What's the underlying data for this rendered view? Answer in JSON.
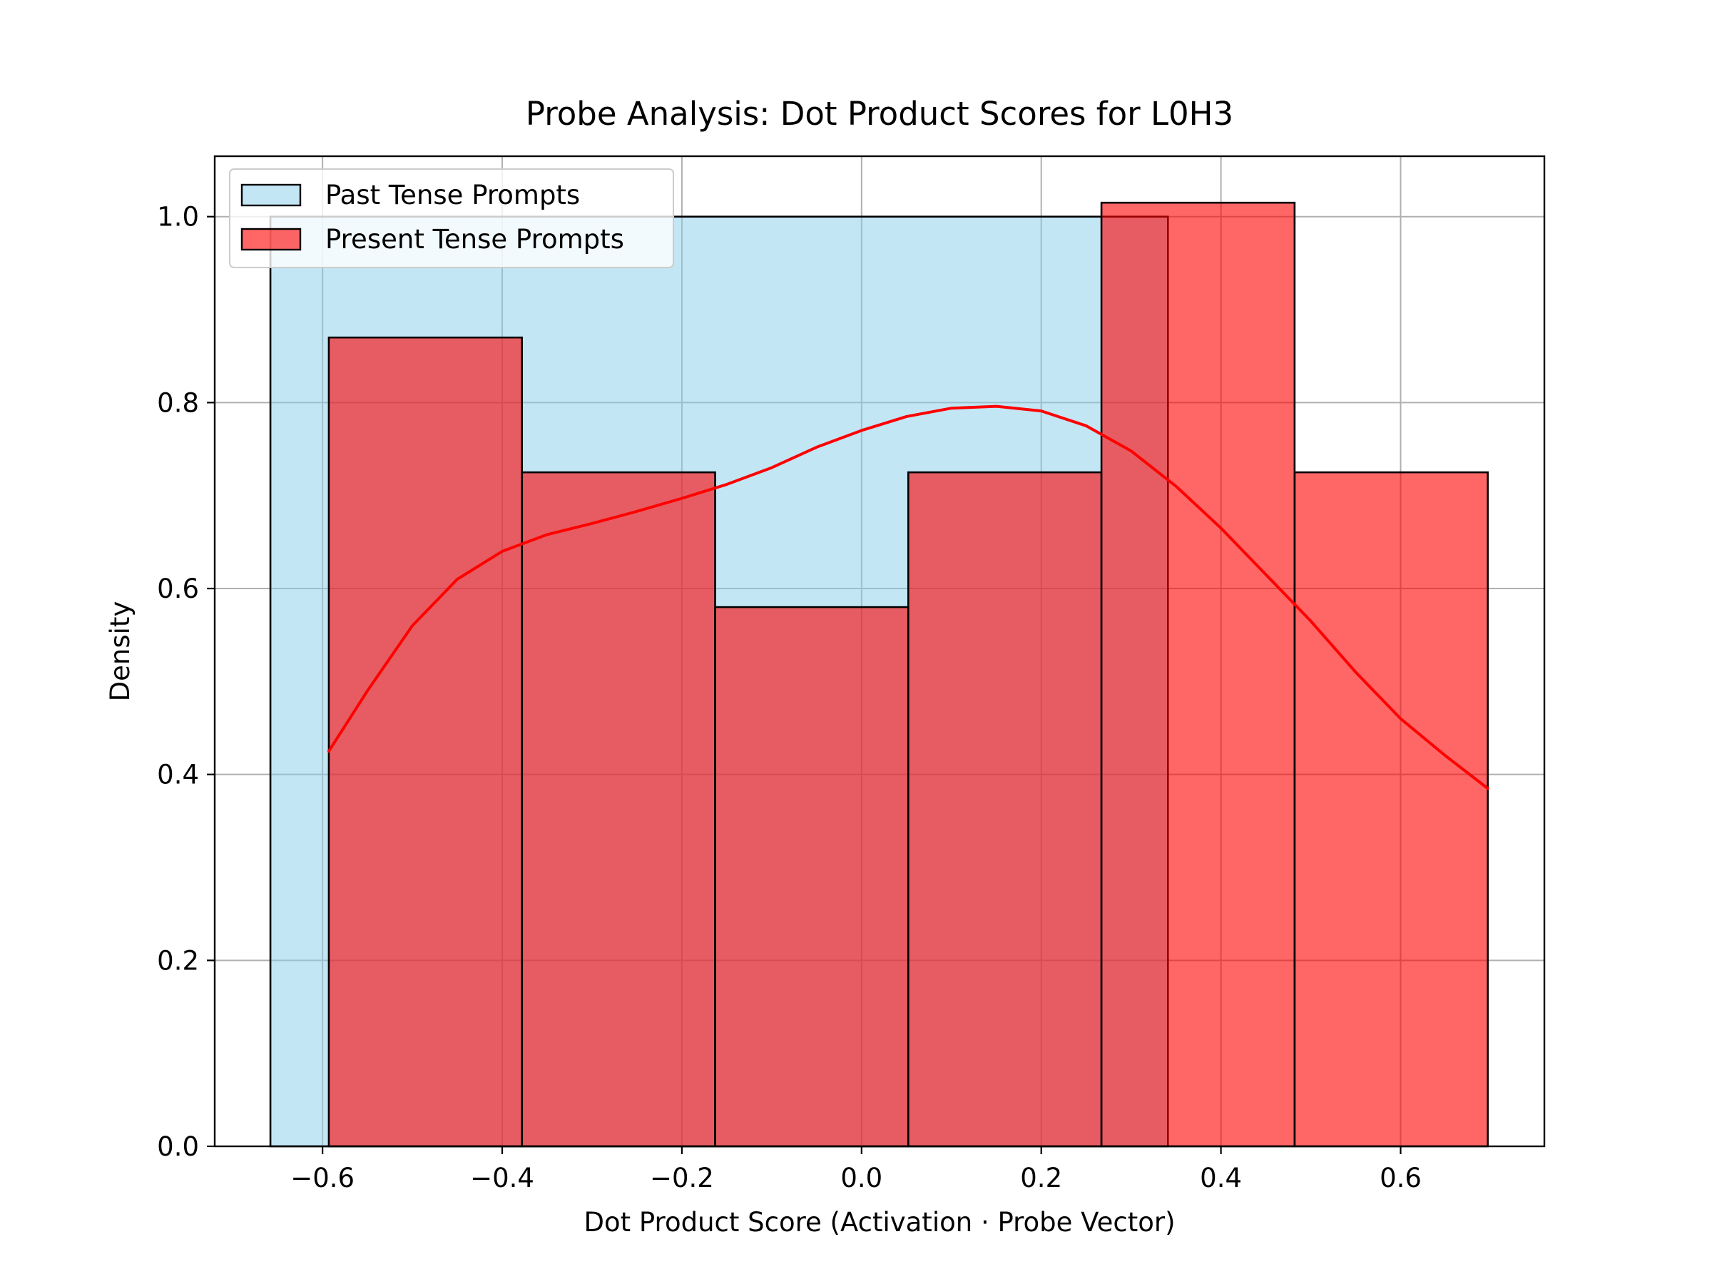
{
  "chart_data": {
    "type": "bar",
    "title": "Probe Analysis: Dot Product Scores for L0H3",
    "xlabel": "Dot Product Score (Activation · Probe Vector)",
    "ylabel": "Density",
    "xlim": [
      -0.72,
      0.76
    ],
    "ylim": [
      0.0,
      1.065
    ],
    "xticks": [
      -0.6,
      -0.4,
      -0.2,
      0.0,
      0.2,
      0.4,
      0.6
    ],
    "xtick_labels": [
      "−0.6",
      "−0.4",
      "−0.2",
      "0.0",
      "0.2",
      "0.4",
      "0.6"
    ],
    "yticks": [
      0.0,
      0.2,
      0.4,
      0.6,
      0.8,
      1.0
    ],
    "ytick_labels": [
      "0.0",
      "0.2",
      "0.4",
      "0.6",
      "0.8",
      "1.0"
    ],
    "grid": true,
    "legend_position": "upper-left",
    "series": [
      {
        "name": "Past Tense Prompts",
        "color": "#87ceeb",
        "opacity": 0.5,
        "bins": [
          {
            "x0": -0.658,
            "x1": 0.341,
            "density": 1.0
          }
        ]
      },
      {
        "name": "Present Tense Prompts",
        "color": "#ff0000",
        "opacity": 0.6,
        "bins": [
          {
            "x0": -0.593,
            "x1": -0.378,
            "density": 0.87
          },
          {
            "x0": -0.378,
            "x1": -0.163,
            "density": 0.725
          },
          {
            "x0": -0.163,
            "x1": 0.052,
            "density": 0.58
          },
          {
            "x0": 0.052,
            "x1": 0.267,
            "density": 0.725
          },
          {
            "x0": 0.267,
            "x1": 0.482,
            "density": 1.015
          },
          {
            "x0": 0.482,
            "x1": 0.697,
            "density": 0.725
          }
        ],
        "kde": {
          "color": "#ff0000",
          "x": [
            -0.593,
            -0.55,
            -0.5,
            -0.45,
            -0.4,
            -0.35,
            -0.3,
            -0.25,
            -0.2,
            -0.15,
            -0.1,
            -0.05,
            0.0,
            0.05,
            0.1,
            0.15,
            0.2,
            0.25,
            0.3,
            0.35,
            0.4,
            0.45,
            0.5,
            0.55,
            0.6,
            0.65,
            0.697
          ],
          "y": [
            0.425,
            0.49,
            0.56,
            0.61,
            0.64,
            0.658,
            0.67,
            0.683,
            0.697,
            0.712,
            0.73,
            0.752,
            0.77,
            0.785,
            0.794,
            0.796,
            0.791,
            0.775,
            0.748,
            0.71,
            0.665,
            0.615,
            0.565,
            0.51,
            0.46,
            0.42,
            0.385
          ]
        }
      }
    ]
  }
}
